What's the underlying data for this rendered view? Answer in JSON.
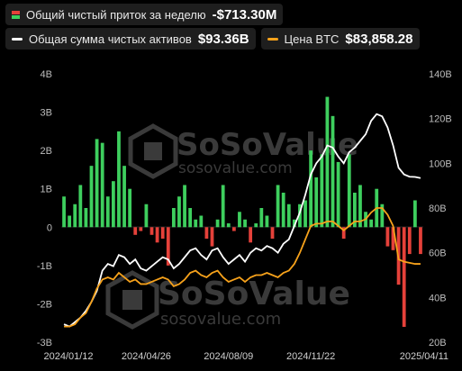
{
  "legend": {
    "flow_label": "Общий чистый приток за неделю",
    "flow_value": "-$713.30M",
    "assets_label": "Общая сумма чистых активов",
    "assets_value": "$93.36B",
    "btc_label": "Цена BTC",
    "btc_value": "$83,858.28"
  },
  "watermark": {
    "brand": "SoSoValue",
    "url": "sosovalue.com"
  },
  "colors": {
    "positive_bar": "#3ecf5e",
    "negative_bar": "#e5413a",
    "assets_line": "#ffffff",
    "btc_line": "#f7a21b",
    "background": "#000000"
  },
  "chart_data": {
    "type": "bar",
    "title": "",
    "xlabel": "",
    "ylabel": "",
    "x_ticks": [
      "2024/01/12",
      "2024/04/26",
      "2024/08/09",
      "2024/11/22",
      "2025/04/11"
    ],
    "y_left": {
      "ticks": [
        "-3B",
        "-2B",
        "-1B",
        "0",
        "1B",
        "2B",
        "3B",
        "4B"
      ],
      "range": [
        -3,
        4
      ],
      "unit": "B"
    },
    "y_right": {
      "ticks": [
        "20B",
        "40B",
        "60B",
        "80B",
        "100B",
        "120B",
        "140B"
      ],
      "range": [
        20,
        140
      ],
      "unit": "B"
    },
    "weeks": 66,
    "series": [
      {
        "name": "Общий чистый приток за неделю",
        "type": "bar",
        "values": [
          0.8,
          0.3,
          0.6,
          1.1,
          0.5,
          1.6,
          2.3,
          2.2,
          0.8,
          1.2,
          2.5,
          1.6,
          1.0,
          -0.2,
          -0.1,
          0.6,
          -0.2,
          -0.4,
          -0.3,
          -1.0,
          0.5,
          0.8,
          1.1,
          0.5,
          0.2,
          0.3,
          -0.3,
          -0.5,
          0.2,
          1.1,
          0.1,
          -0.1,
          0.4,
          0.2,
          -0.4,
          0.1,
          0.5,
          0.3,
          -0.3,
          1.1,
          0.9,
          0.6,
          0.2,
          0.6,
          0.7,
          2.0,
          1.3,
          1.9,
          3.4,
          2.9,
          1.7,
          -0.3,
          1.9,
          0.9,
          1.1,
          0.4,
          0.2,
          1.0,
          0.6,
          -0.5,
          -0.6,
          -1.5,
          -2.6,
          -0.7,
          0.7,
          -0.7
        ]
      },
      {
        "name": "Общая сумма чистых активов",
        "type": "line",
        "axis": "right",
        "values": [
          28,
          27,
          29,
          31,
          34,
          38,
          43,
          52,
          55,
          54,
          59,
          58,
          55,
          57,
          53,
          52,
          54,
          56,
          58,
          57,
          53,
          55,
          58,
          61,
          62,
          59,
          57,
          61,
          62,
          58,
          55,
          57,
          59,
          56,
          60,
          62,
          61,
          63,
          62,
          60,
          64,
          66,
          72,
          78,
          86,
          95,
          100,
          103,
          108,
          107,
          103,
          100,
          105,
          107,
          110,
          113,
          119,
          122,
          121,
          116,
          108,
          98,
          95,
          94,
          93.9,
          93.4
        ]
      },
      {
        "name": "Цена BTC",
        "type": "line",
        "axis": "right",
        "values": [
          27,
          27,
          28,
          31,
          33,
          38,
          44,
          48,
          49,
          48,
          51,
          49,
          47,
          48,
          46,
          46,
          47,
          48,
          49,
          48,
          45,
          46,
          48,
          51,
          52,
          50,
          49,
          51,
          52,
          49,
          47,
          48,
          49,
          47,
          49,
          50,
          50,
          51,
          50,
          49,
          51,
          52,
          55,
          60,
          66,
          72,
          73,
          73,
          74,
          74,
          72,
          70,
          72,
          74,
          74,
          75,
          78,
          80,
          80,
          77,
          72,
          57,
          56,
          55.5,
          55,
          55
        ]
      }
    ],
    "grid": false,
    "legend_position": "top-left"
  }
}
